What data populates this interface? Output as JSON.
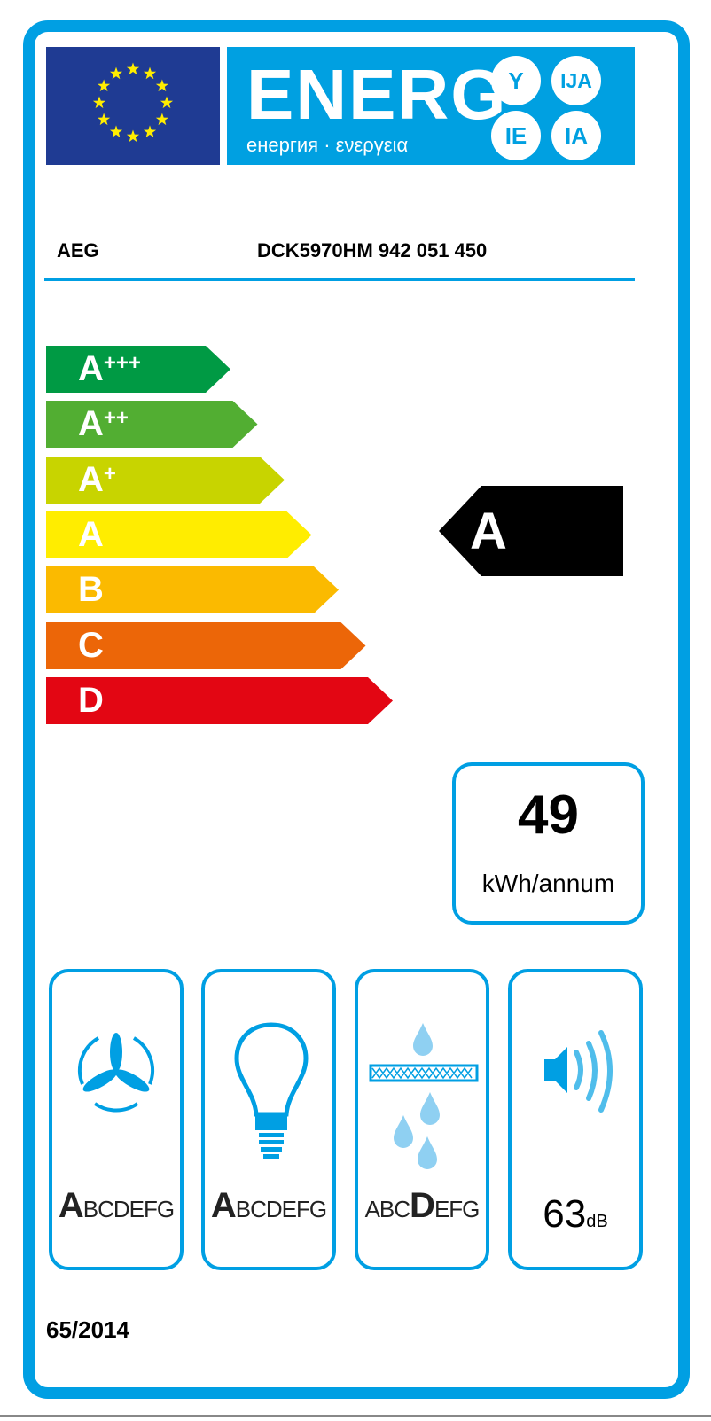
{
  "header": {
    "energy_word": "ENERG",
    "energy_subtitle": "енергия · ενεργεια",
    "suffixes": [
      "Y",
      "IJA",
      "IE",
      "IA"
    ],
    "flag": "eu-flag-icon"
  },
  "product": {
    "brand": "AEG",
    "model": "DCK5970HM  942 051 450"
  },
  "scale": [
    {
      "label": "A",
      "plus": "+++",
      "color": "#009a44"
    },
    {
      "label": "A",
      "plus": "++",
      "color": "#52ae32"
    },
    {
      "label": "A",
      "plus": "+",
      "color": "#c8d400"
    },
    {
      "label": "A",
      "plus": "",
      "color": "#ffed00"
    },
    {
      "label": "B",
      "plus": "",
      "color": "#fbba00"
    },
    {
      "label": "C",
      "plus": "",
      "color": "#ec6608"
    },
    {
      "label": "D",
      "plus": "",
      "color": "#e30613"
    }
  ],
  "rating": {
    "class": "A",
    "scale_index": 3
  },
  "consumption": {
    "value": "49",
    "unit": "kWh/annum"
  },
  "pictograms": [
    {
      "icon": "fan-icon",
      "classes": "ABCDEFG",
      "selected": "A"
    },
    {
      "icon": "light-bulb-icon",
      "classes": "ABCDEFG",
      "selected": "A"
    },
    {
      "icon": "grease-filter-icon",
      "classes": "ABCDEFG",
      "selected": "D"
    },
    {
      "icon": "speaker-noise-icon",
      "noise_value": "63",
      "noise_unit": "dB"
    }
  ],
  "regulation": "65/2014",
  "colors": {
    "frame": "#009fe3",
    "flag": "#1f3b93",
    "indicator": "#000000"
  }
}
